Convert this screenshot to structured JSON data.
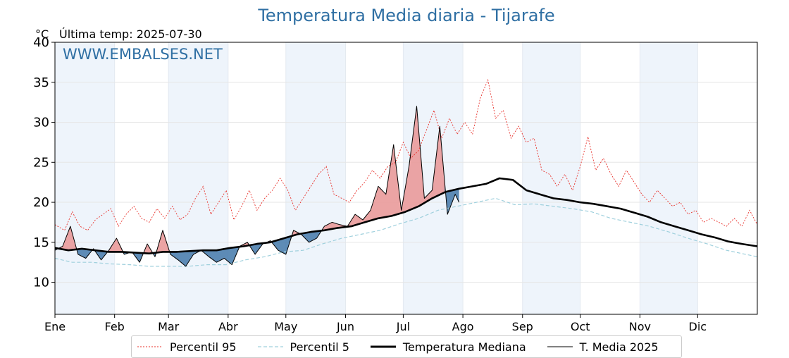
{
  "chart_data": {
    "type": "line",
    "title": "Temperatura Media diaria - Tijarafe",
    "unit_label": "°C",
    "last_reading": "Última temp: 2025-07-30",
    "watermark": "WWW.EMBALSES.NET",
    "ylim": [
      6,
      40
    ],
    "yticks": [
      10,
      15,
      20,
      25,
      30,
      35,
      40
    ],
    "xlim": [
      1,
      366
    ],
    "months": [
      {
        "label": "Ene",
        "start": 1,
        "end": 31
      },
      {
        "label": "Feb",
        "start": 32,
        "end": 59
      },
      {
        "label": "Mar",
        "start": 60,
        "end": 90
      },
      {
        "label": "Abr",
        "start": 91,
        "end": 120
      },
      {
        "label": "May",
        "start": 121,
        "end": 151
      },
      {
        "label": "Jun",
        "start": 152,
        "end": 181
      },
      {
        "label": "Jul",
        "start": 182,
        "end": 212
      },
      {
        "label": "Ago",
        "start": 213,
        "end": 243
      },
      {
        "label": "Sep",
        "start": 244,
        "end": 273
      },
      {
        "label": "Oct",
        "start": 274,
        "end": 304
      },
      {
        "label": "Nov",
        "start": 305,
        "end": 334
      },
      {
        "label": "Dic",
        "start": 335,
        "end": 365
      }
    ],
    "grid": true,
    "legend_position": "bottom",
    "colors": {
      "p95": "#e8302a",
      "p5": "#9fd0dd",
      "median": "#000000",
      "actual": "#000000",
      "above": "#e99a9a",
      "below": "#4d7fae",
      "band": "#eef4fb",
      "title": "#2f6fa3"
    },
    "series": [
      {
        "key": "p95",
        "name": "Percentil 95",
        "x": [
          1,
          6,
          10,
          14,
          18,
          22,
          26,
          30,
          34,
          38,
          42,
          46,
          50,
          54,
          58,
          62,
          66,
          70,
          74,
          78,
          82,
          86,
          90,
          94,
          98,
          102,
          106,
          110,
          114,
          118,
          122,
          126,
          130,
          134,
          138,
          142,
          146,
          150,
          154,
          158,
          162,
          166,
          170,
          174,
          178,
          182,
          186,
          190,
          194,
          198,
          202,
          206,
          210,
          214,
          218,
          222,
          226,
          230,
          234,
          238,
          242,
          246,
          250,
          254,
          258,
          262,
          266,
          270,
          274,
          278,
          282,
          286,
          290,
          294,
          298,
          302,
          306,
          310,
          314,
          318,
          322,
          326,
          330,
          334,
          338,
          342,
          346,
          350,
          354,
          358,
          362,
          366
        ],
        "y": [
          17.2,
          16.5,
          18.8,
          17.0,
          16.5,
          17.8,
          18.5,
          19.2,
          17.0,
          18.5,
          19.5,
          18.0,
          17.5,
          19.2,
          18.0,
          19.5,
          17.8,
          18.5,
          20.5,
          22.0,
          18.5,
          20.0,
          21.5,
          17.8,
          19.5,
          21.5,
          19.0,
          20.5,
          21.5,
          23.0,
          21.5,
          19.0,
          20.5,
          22.0,
          23.5,
          24.5,
          21.0,
          20.5,
          20.0,
          21.5,
          22.5,
          24.0,
          23.0,
          24.5,
          25.0,
          27.5,
          25.5,
          26.5,
          29.0,
          31.5,
          28.0,
          30.5,
          28.5,
          30.0,
          28.5,
          33.0,
          35.3,
          30.5,
          31.5,
          28.0,
          29.5,
          27.5,
          28.0,
          24.0,
          23.5,
          22.0,
          23.5,
          21.5,
          24.5,
          28.2,
          24.0,
          25.5,
          23.5,
          22.0,
          24.0,
          22.5,
          21.0,
          20.0,
          21.5,
          20.5,
          19.5,
          20.0,
          18.5,
          19.0,
          17.5,
          18.0,
          17.5,
          17.0,
          18.0,
          17.0,
          19.0,
          17.2
        ]
      },
      {
        "key": "p5",
        "name": "Percentil 5",
        "x": [
          1,
          10,
          20,
          30,
          40,
          50,
          60,
          70,
          80,
          90,
          100,
          110,
          120,
          130,
          140,
          150,
          160,
          170,
          180,
          190,
          200,
          210,
          220,
          230,
          240,
          250,
          260,
          270,
          280,
          290,
          300,
          310,
          320,
          330,
          340,
          350,
          360,
          366
        ],
        "y": [
          13.0,
          12.5,
          12.5,
          12.3,
          12.2,
          12.0,
          12.0,
          12.0,
          12.2,
          12.2,
          12.8,
          13.2,
          13.8,
          14.0,
          14.8,
          15.5,
          16.0,
          16.5,
          17.3,
          18.0,
          19.0,
          19.5,
          20.0,
          20.5,
          19.7,
          19.8,
          19.5,
          19.2,
          18.8,
          18.0,
          17.5,
          17.0,
          16.3,
          15.5,
          14.8,
          14.0,
          13.5,
          13.2
        ]
      },
      {
        "key": "median",
        "name": "Temperatura Mediana",
        "x": [
          1,
          8,
          15,
          22,
          29,
          36,
          43,
          50,
          57,
          64,
          71,
          78,
          85,
          92,
          99,
          106,
          113,
          120,
          127,
          134,
          141,
          148,
          155,
          162,
          169,
          176,
          183,
          190,
          197,
          204,
          211,
          218,
          225,
          232,
          239,
          246,
          253,
          260,
          267,
          274,
          281,
          288,
          295,
          302,
          309,
          316,
          323,
          330,
          337,
          344,
          351,
          358,
          366
        ],
        "y": [
          14.3,
          14.0,
          14.2,
          14.0,
          13.8,
          13.8,
          13.7,
          13.6,
          13.8,
          13.8,
          13.9,
          14.0,
          14.0,
          14.3,
          14.5,
          14.8,
          15.0,
          15.5,
          16.0,
          16.3,
          16.5,
          16.8,
          17.0,
          17.5,
          18.0,
          18.3,
          18.8,
          19.5,
          20.5,
          21.3,
          21.7,
          22.0,
          22.3,
          23.0,
          22.8,
          21.5,
          21.0,
          20.5,
          20.3,
          20.0,
          19.8,
          19.5,
          19.2,
          18.7,
          18.2,
          17.5,
          17.0,
          16.5,
          16.0,
          15.6,
          15.1,
          14.8,
          14.5
        ]
      },
      {
        "key": "actual",
        "name": "T. Media 2025",
        "x": [
          1,
          5,
          9,
          13,
          17,
          21,
          25,
          29,
          33,
          37,
          41,
          45,
          49,
          53,
          57,
          61,
          65,
          69,
          73,
          77,
          81,
          85,
          89,
          93,
          97,
          101,
          105,
          109,
          113,
          117,
          121,
          125,
          129,
          133,
          137,
          141,
          145,
          149,
          153,
          157,
          161,
          165,
          169,
          173,
          177,
          181,
          185,
          189,
          193,
          197,
          201,
          205,
          209,
          211
        ],
        "y": [
          14.0,
          14.5,
          17.0,
          13.5,
          13.0,
          14.2,
          12.8,
          14.0,
          15.5,
          13.5,
          13.8,
          12.5,
          14.8,
          13.2,
          16.5,
          13.5,
          12.8,
          12.0,
          13.5,
          14.0,
          13.2,
          12.5,
          13.0,
          12.2,
          14.5,
          15.0,
          13.5,
          14.8,
          15.2,
          14.0,
          13.5,
          16.5,
          16.0,
          15.0,
          15.5,
          17.0,
          17.5,
          17.2,
          17.0,
          18.5,
          17.8,
          19.0,
          22.0,
          21.0,
          27.2,
          19.0,
          24.5,
          32.0,
          20.5,
          21.5,
          29.5,
          18.5,
          21.0,
          20.0
        ]
      }
    ],
    "dominant_anomaly_windows": [
      {
        "kind": "above",
        "from": "Ene",
        "to": "Ene"
      },
      {
        "kind": "below",
        "from": "Mar",
        "to": "Abr"
      },
      {
        "kind": "above",
        "from": "Jul",
        "to": "Ago"
      }
    ]
  }
}
